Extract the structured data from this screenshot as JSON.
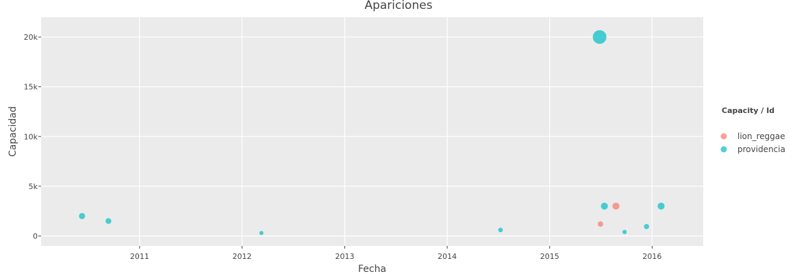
{
  "chart_data": {
    "type": "scatter",
    "title": "Apariciones",
    "xlabel": "Fecha",
    "ylabel": "Capacidad",
    "x_axis_type": "date",
    "xlim": [
      "2010-01-15",
      "2016-07-01"
    ],
    "ylim": [
      -1000,
      22000
    ],
    "x_ticks": [
      "2011",
      "2012",
      "2013",
      "2014",
      "2015",
      "2016"
    ],
    "y_ticks": [
      {
        "value": 0,
        "label": "0"
      },
      {
        "value": 5000,
        "label": "5k"
      },
      {
        "value": 10000,
        "label": "10k"
      },
      {
        "value": 15000,
        "label": "15k"
      },
      {
        "value": 20000,
        "label": "20k"
      }
    ],
    "grid": true,
    "legend": {
      "title": "Capacity / Id",
      "position": "right"
    },
    "series": [
      {
        "name": "lion_reggae",
        "color": "#F8766D",
        "points": [
          {
            "x": "2015-07-01",
            "y": 1200
          },
          {
            "x": "2015-08-25",
            "y": 3000
          }
        ]
      },
      {
        "name": "providencia",
        "color": "#00BFC4",
        "points": [
          {
            "x": "2010-06-10",
            "y": 2000
          },
          {
            "x": "2010-09-12",
            "y": 1500
          },
          {
            "x": "2012-03-10",
            "y": 300
          },
          {
            "x": "2014-07-10",
            "y": 600
          },
          {
            "x": "2015-06-28",
            "y": 20000
          },
          {
            "x": "2015-07-15",
            "y": 3000
          },
          {
            "x": "2015-09-25",
            "y": 400
          },
          {
            "x": "2015-12-12",
            "y": 950
          },
          {
            "x": "2016-02-02",
            "y": 3000
          }
        ]
      }
    ]
  }
}
